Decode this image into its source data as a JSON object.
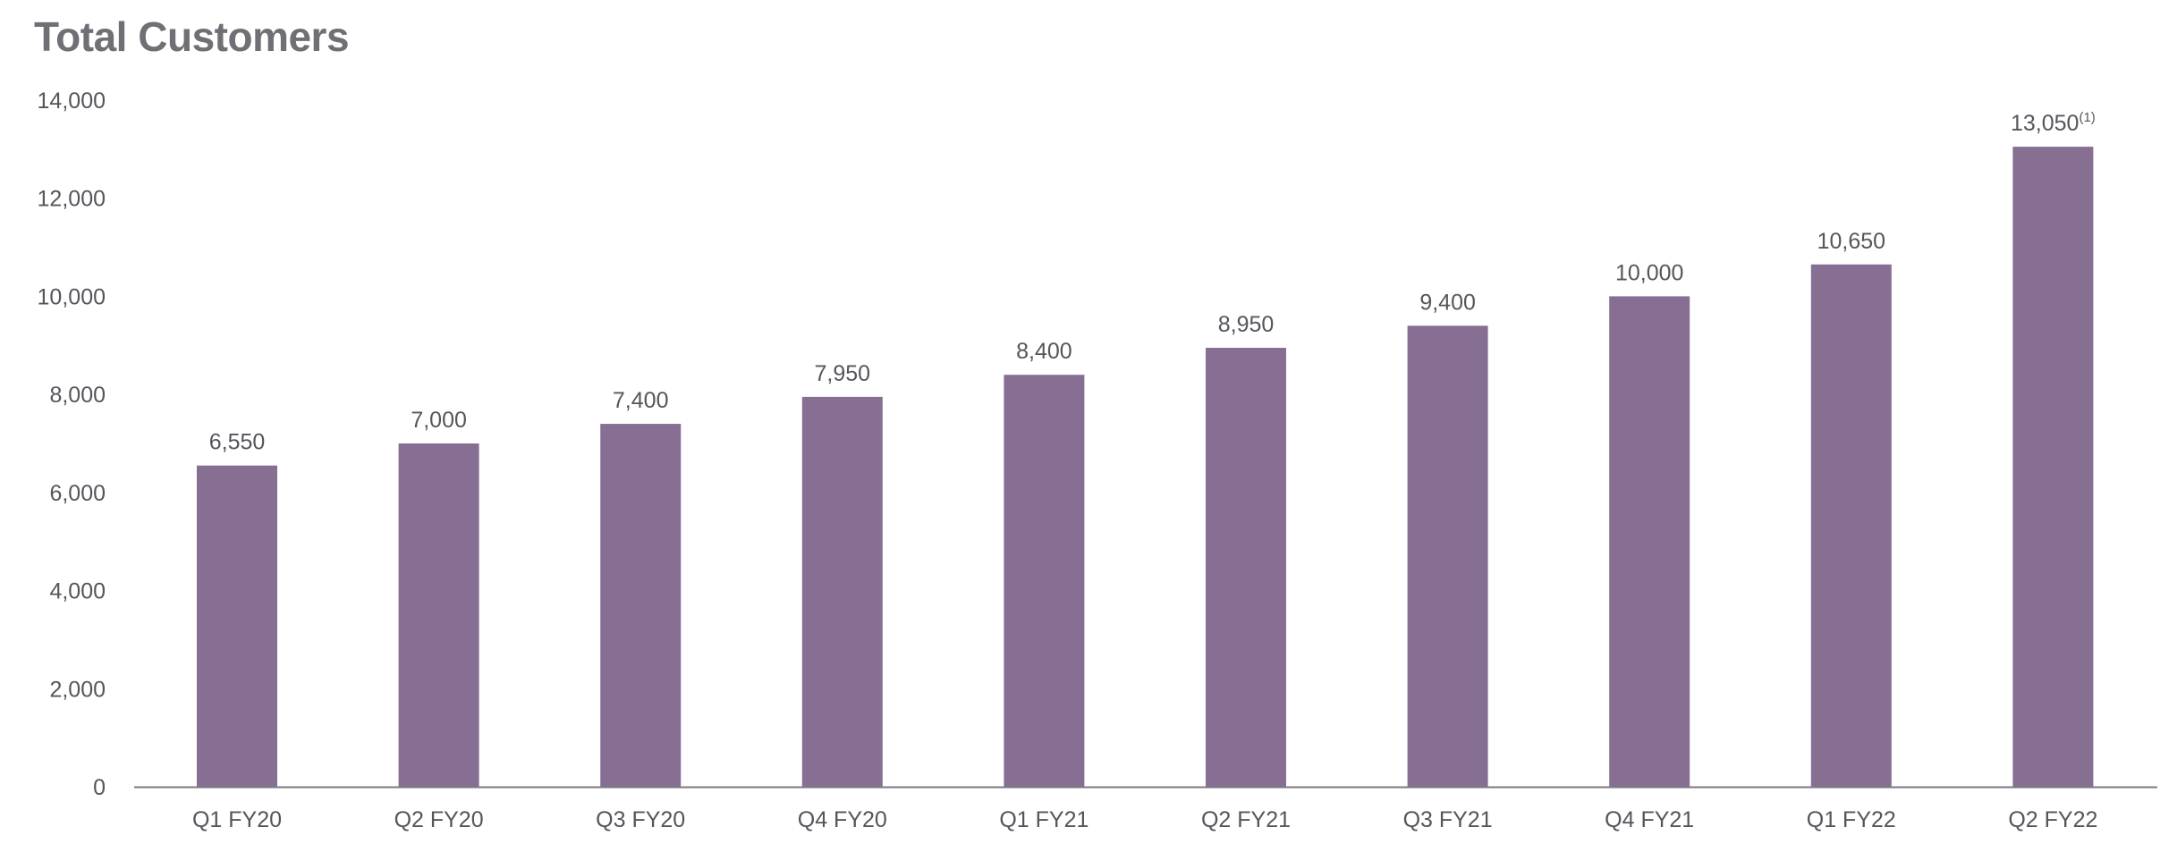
{
  "chart_data": {
    "type": "bar",
    "title": "Total Customers",
    "categories": [
      "Q1 FY20",
      "Q2 FY20",
      "Q3 FY20",
      "Q4 FY20",
      "Q1 FY21",
      "Q2 FY21",
      "Q3 FY21",
      "Q4 FY21",
      "Q1 FY22",
      "Q2 FY22"
    ],
    "values": [
      6550,
      7000,
      7400,
      7950,
      8400,
      8950,
      9400,
      10000,
      10650,
      13050
    ],
    "data_labels": [
      "6,550",
      "7,000",
      "7,400",
      "7,950",
      "8,400",
      "8,950",
      "9,400",
      "10,000",
      "10,650",
      "13,050"
    ],
    "data_label_footnotes": [
      "",
      "",
      "",
      "",
      "",
      "",
      "",
      "",
      "",
      "(1)"
    ],
    "yticks": [
      "0",
      "2,000",
      "4,000",
      "6,000",
      "8,000",
      "10,000",
      "12,000",
      "14,000"
    ],
    "ytick_values": [
      0,
      2000,
      4000,
      6000,
      8000,
      10000,
      12000,
      14000
    ],
    "ylim": [
      0,
      14000
    ],
    "xlabel": "",
    "ylabel": "",
    "grid": false,
    "bar_color": "#866f93",
    "axis_color": "#7a7a80"
  }
}
